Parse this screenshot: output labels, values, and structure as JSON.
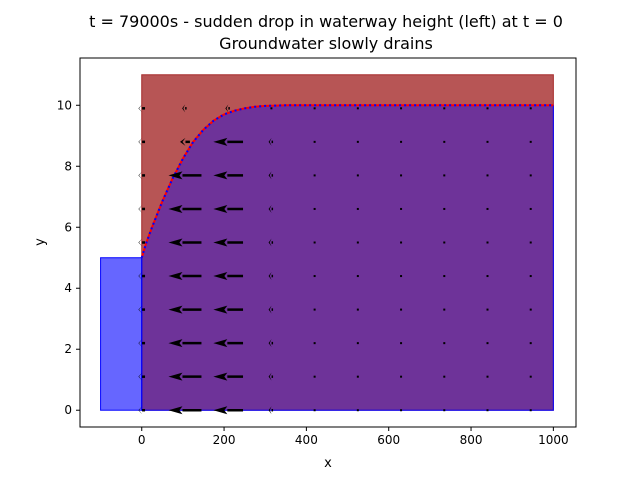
{
  "chart_data": {
    "type": "area",
    "title_line1": "t = 79000s - sudden drop in waterway height (left) at t = 0",
    "title_line2": "Groundwater slowly drains",
    "xlabel": "x",
    "ylabel": "y",
    "xlim": [
      -150,
      1055
    ],
    "ylim": [
      -0.55,
      11.55
    ],
    "xticks": [
      0,
      200,
      400,
      600,
      800,
      1000
    ],
    "yticks": [
      0,
      2,
      4,
      6,
      8,
      10
    ],
    "grid": false,
    "colors": {
      "soil": "#a52a2a",
      "water": "#0000ff",
      "waterline": "#0000ff",
      "ref_line": "#ff0000",
      "arrows": "#000000"
    },
    "soil_region": {
      "x": [
        0,
        1000
      ],
      "y": [
        0,
        11
      ]
    },
    "waterway": {
      "x": [
        -100,
        0
      ],
      "y": [
        0,
        5
      ]
    },
    "water_table": {
      "x": [
        0,
        10,
        25,
        50,
        75,
        100,
        125,
        150,
        175,
        200,
        225,
        250,
        275,
        300,
        325,
        350,
        400,
        500,
        600,
        700,
        800,
        900,
        1000
      ],
      "y": [
        5.0,
        5.45,
        6.0,
        6.85,
        7.6,
        8.25,
        8.8,
        9.2,
        9.5,
        9.7,
        9.82,
        9.9,
        9.95,
        9.98,
        9.99,
        10.0,
        10.0,
        10.0,
        10.0,
        10.0,
        10.0,
        10.0,
        10.0
      ]
    },
    "flow_field": {
      "x": [
        0,
        105,
        210,
        315,
        420,
        525,
        630,
        735,
        840,
        945
      ],
      "y": [
        0,
        1.1,
        2.2,
        3.3,
        4.4,
        5.5,
        6.6,
        7.7,
        8.8,
        9.9
      ],
      "u_by_row": [
        [
          -0.2,
          -1.0,
          -0.9,
          -0.1,
          -0.03,
          -0.02,
          -0.02,
          -0.02,
          -0.02,
          -0.02
        ],
        [
          -0.2,
          -1.0,
          -0.9,
          -0.1,
          -0.03,
          -0.02,
          -0.02,
          -0.02,
          -0.02,
          -0.02
        ],
        [
          -0.2,
          -1.0,
          -0.9,
          -0.1,
          -0.03,
          -0.02,
          -0.02,
          -0.02,
          -0.02,
          -0.02
        ],
        [
          -0.2,
          -1.0,
          -0.9,
          -0.1,
          -0.03,
          -0.02,
          -0.02,
          -0.02,
          -0.02,
          -0.02
        ],
        [
          -0.2,
          -1.0,
          -0.9,
          -0.1,
          -0.03,
          -0.02,
          -0.02,
          -0.02,
          -0.02,
          -0.02
        ],
        [
          -0.2,
          -1.0,
          -0.9,
          -0.1,
          -0.03,
          -0.02,
          -0.02,
          -0.02,
          -0.02,
          -0.02
        ],
        [
          -0.2,
          -1.0,
          -0.9,
          -0.1,
          -0.03,
          -0.02,
          -0.02,
          -0.02,
          -0.02,
          -0.02
        ],
        [
          -0.2,
          -1.0,
          -0.9,
          -0.1,
          -0.03,
          -0.02,
          -0.02,
          -0.02,
          -0.02,
          -0.02
        ],
        [
          -0.2,
          -0.3,
          -0.9,
          -0.1,
          -0.03,
          -0.02,
          -0.02,
          -0.02,
          -0.02,
          -0.02
        ],
        [
          -0.2,
          -0.1,
          -0.1,
          -0.05,
          -0.02,
          -0.02,
          -0.02,
          -0.02,
          -0.02,
          -0.02
        ]
      ]
    }
  }
}
